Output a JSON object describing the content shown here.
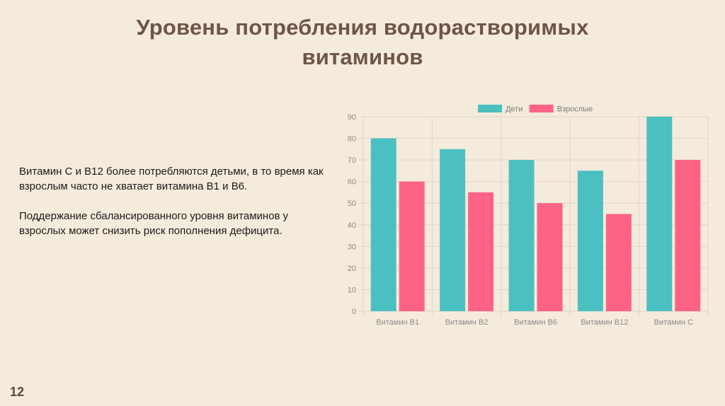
{
  "slide": {
    "title_line1": "Уровень потребления водорастворимых",
    "title_line2": "витаминов",
    "paragraph1": "Витамин С и В12 более потребляются детьми, в то время как взрослым часто не хватает витамина В1 и В6.",
    "paragraph2": "Поддержание сбалансированного уровня витаминов у взрослых может снизить риск пополнения дефицита.",
    "page_number": "12"
  },
  "chart_data": {
    "type": "bar",
    "categories": [
      "Витамин В1",
      "Витамин В2",
      "Витамин В6",
      "Витамин В12",
      "Витамин С"
    ],
    "series": [
      {
        "name": "Дети",
        "values": [
          80,
          75,
          70,
          65,
          90
        ],
        "color": "#4bc0c0"
      },
      {
        "name": "Взрослые",
        "values": [
          60,
          55,
          50,
          45,
          70
        ],
        "color": "#ff6384"
      }
    ],
    "ylim": [
      0,
      90
    ],
    "yticks": [
      0,
      10,
      20,
      30,
      40,
      50,
      60,
      70,
      80,
      90
    ],
    "grid": true,
    "legend_position": "top-center",
    "title": "",
    "xlabel": "",
    "ylabel": ""
  }
}
